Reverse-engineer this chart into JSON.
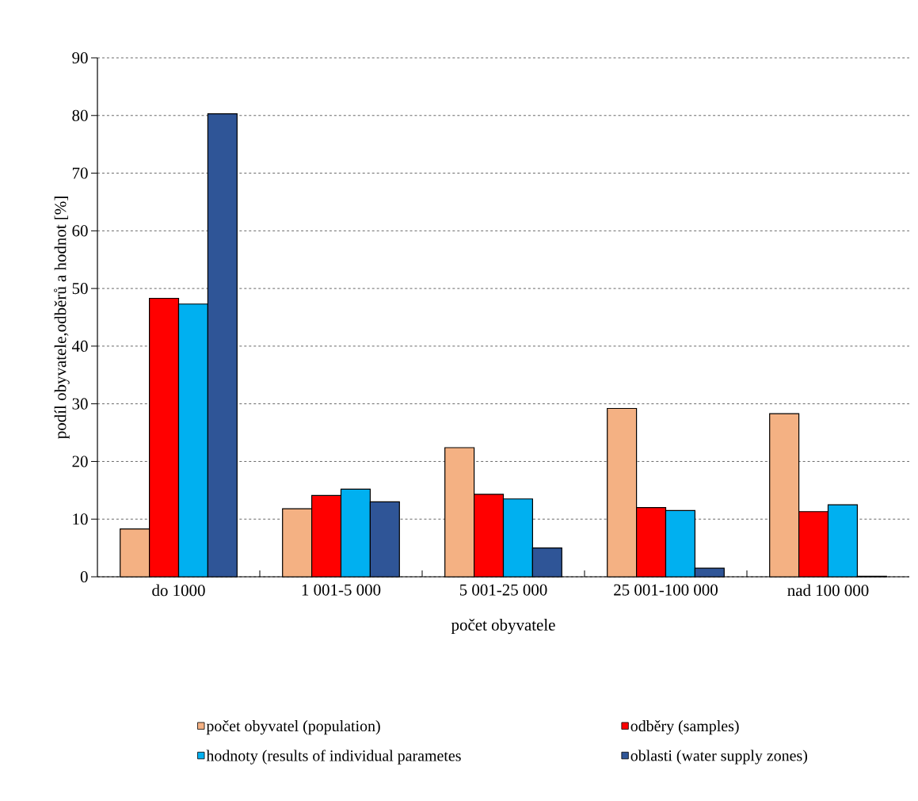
{
  "chart_data": {
    "type": "bar",
    "xlabel": "počet obyvatele",
    "ylabel": "podíl  obyvatele,odběrů a hodnot [%]",
    "categories": [
      "do 1000",
      "1 001-5 000",
      "5 001-25 000",
      "25 001-100 000",
      "nad 100 000"
    ],
    "series": [
      {
        "name": "počet obyvatel (population)",
        "color": "#f4b183",
        "values": [
          8.3,
          11.8,
          22.4,
          29.2,
          28.3
        ]
      },
      {
        "name": "odběry (samples)",
        "color": "#ff0000",
        "values": [
          48.3,
          14.1,
          14.3,
          12.0,
          11.3
        ]
      },
      {
        "name": "hodnoty (results of individual parametes",
        "color": "#00b0f0",
        "values": [
          47.3,
          15.2,
          13.5,
          11.5,
          12.5
        ]
      },
      {
        "name": "oblasti (water supply zones)",
        "color": "#2f5597",
        "values": [
          80.3,
          13.0,
          5.0,
          1.5,
          0.1
        ]
      }
    ],
    "ylim": [
      0,
      90
    ],
    "yticks": [
      0,
      10,
      20,
      30,
      40,
      50,
      60,
      70,
      80,
      90
    ],
    "grid": "y",
    "legend": "bottom"
  }
}
